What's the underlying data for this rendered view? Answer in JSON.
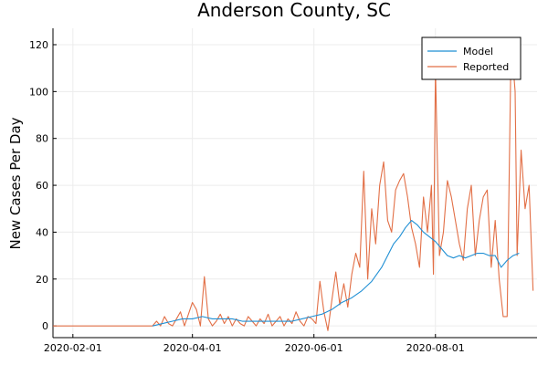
{
  "chart_data": {
    "type": "line",
    "title": "Anderson County, SC",
    "xlabel": "",
    "ylabel": "New Cases Per Day",
    "xlim": [
      "2020-01-22",
      "2020-09-21"
    ],
    "ylim": [
      -5,
      127
    ],
    "xticks": [
      "2020-02-01",
      "2020-04-01",
      "2020-06-01",
      "2020-08-01"
    ],
    "yticks": [
      0,
      20,
      40,
      60,
      80,
      100,
      120
    ],
    "grid": true,
    "legend_position": "top-right",
    "colors": {
      "Model": "#1f8fd4",
      "Reported": "#e26f46"
    },
    "series": [
      {
        "name": "Model",
        "x": [
          "2020-03-12",
          "2020-03-17",
          "2020-03-22",
          "2020-03-27",
          "2020-04-01",
          "2020-04-06",
          "2020-04-11",
          "2020-04-16",
          "2020-04-21",
          "2020-04-26",
          "2020-05-01",
          "2020-05-06",
          "2020-05-11",
          "2020-05-16",
          "2020-05-21",
          "2020-05-26",
          "2020-05-31",
          "2020-06-05",
          "2020-06-10",
          "2020-06-15",
          "2020-06-20",
          "2020-06-25",
          "2020-06-30",
          "2020-07-05",
          "2020-07-08",
          "2020-07-11",
          "2020-07-14",
          "2020-07-17",
          "2020-07-20",
          "2020-07-23",
          "2020-07-26",
          "2020-07-29",
          "2020-08-01",
          "2020-08-04",
          "2020-08-07",
          "2020-08-10",
          "2020-08-13",
          "2020-08-16",
          "2020-08-19",
          "2020-08-22",
          "2020-08-25",
          "2020-08-28",
          "2020-08-31",
          "2020-09-03",
          "2020-09-06",
          "2020-09-09",
          "2020-09-12"
        ],
        "y": [
          0,
          1,
          2,
          3,
          3,
          4,
          3,
          3,
          3,
          2,
          2,
          2,
          2,
          2,
          2,
          3,
          4,
          5,
          7,
          10,
          12,
          15,
          19,
          25,
          30,
          35,
          38,
          42,
          45,
          43,
          40,
          38,
          36,
          33,
          30,
          29,
          30,
          29,
          30,
          31,
          31,
          30,
          30,
          25,
          28,
          30,
          31
        ]
      },
      {
        "name": "Reported",
        "x": [
          "2020-01-22",
          "2020-02-15",
          "2020-03-10",
          "2020-03-12",
          "2020-03-14",
          "2020-03-16",
          "2020-03-18",
          "2020-03-20",
          "2020-03-22",
          "2020-03-24",
          "2020-03-26",
          "2020-03-28",
          "2020-03-30",
          "2020-04-01",
          "2020-04-03",
          "2020-04-05",
          "2020-04-07",
          "2020-04-09",
          "2020-04-11",
          "2020-04-13",
          "2020-04-15",
          "2020-04-17",
          "2020-04-19",
          "2020-04-21",
          "2020-04-23",
          "2020-04-25",
          "2020-04-27",
          "2020-04-29",
          "2020-05-01",
          "2020-05-03",
          "2020-05-05",
          "2020-05-07",
          "2020-05-09",
          "2020-05-11",
          "2020-05-13",
          "2020-05-15",
          "2020-05-17",
          "2020-05-19",
          "2020-05-21",
          "2020-05-23",
          "2020-05-25",
          "2020-05-27",
          "2020-05-29",
          "2020-05-31",
          "2020-06-02",
          "2020-06-04",
          "2020-06-06",
          "2020-06-08",
          "2020-06-10",
          "2020-06-12",
          "2020-06-14",
          "2020-06-16",
          "2020-06-18",
          "2020-06-20",
          "2020-06-22",
          "2020-06-24",
          "2020-06-26",
          "2020-06-28",
          "2020-06-30",
          "2020-07-02",
          "2020-07-04",
          "2020-07-06",
          "2020-07-08",
          "2020-07-10",
          "2020-07-12",
          "2020-07-14",
          "2020-07-16",
          "2020-07-18",
          "2020-07-20",
          "2020-07-22",
          "2020-07-24",
          "2020-07-26",
          "2020-07-28",
          "2020-07-30",
          "2020-07-31",
          "2020-08-01",
          "2020-08-03",
          "2020-08-05",
          "2020-08-07",
          "2020-08-09",
          "2020-08-11",
          "2020-08-13",
          "2020-08-15",
          "2020-08-17",
          "2020-08-19",
          "2020-08-21",
          "2020-08-23",
          "2020-08-25",
          "2020-08-27",
          "2020-08-29",
          "2020-08-31",
          "2020-09-02",
          "2020-09-04",
          "2020-09-06",
          "2020-09-08",
          "2020-09-10",
          "2020-09-11",
          "2020-09-13",
          "2020-09-15",
          "2020-09-17",
          "2020-09-19"
        ],
        "y": [
          0,
          0,
          0,
          0,
          2,
          0,
          4,
          1,
          0,
          3,
          6,
          0,
          5,
          10,
          7,
          0,
          21,
          3,
          0,
          2,
          5,
          1,
          4,
          0,
          3,
          1,
          0,
          4,
          2,
          0,
          3,
          1,
          5,
          0,
          2,
          4,
          0,
          3,
          1,
          6,
          2,
          0,
          4,
          3,
          1,
          19,
          6,
          -2,
          11,
          23,
          9,
          18,
          8,
          22,
          31,
          25,
          66,
          20,
          50,
          35,
          60,
          70,
          45,
          40,
          58,
          62,
          65,
          55,
          42,
          35,
          25,
          55,
          40,
          60,
          22,
          110,
          30,
          40,
          62,
          55,
          45,
          35,
          28,
          50,
          60,
          30,
          45,
          55,
          58,
          25,
          45,
          20,
          4,
          4,
          122,
          100,
          30,
          75,
          50,
          60,
          15
        ]
      }
    ]
  }
}
